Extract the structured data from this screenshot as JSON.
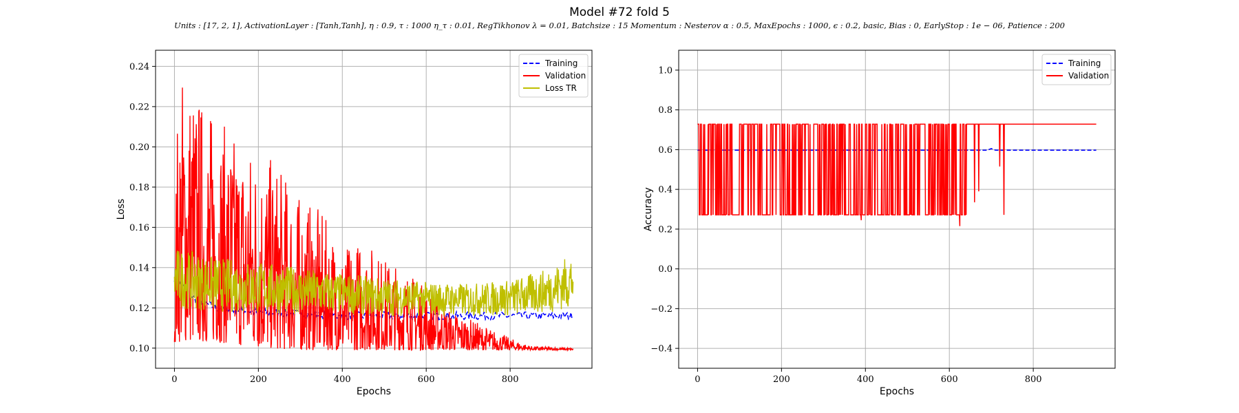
{
  "figure": {
    "title": "Model #72 fold 5",
    "subtitle": "Units : [17, 2, 1], ActivationLayer : [Tanh,Tanh], η : 0.9, τ : 1000 η_τ : 0.01, RegTikhonov λ = 0.01, Batchsize : 15 Momentum : Nesterov α : 0.5, MaxEpochs : 1000, ϵ : 0.2, basic, Bias : 0, EarlyStop : 1e − 06, Patience : 200"
  },
  "chart_data": [
    {
      "type": "line",
      "xlabel": "Epochs",
      "ylabel": "Loss",
      "xlim": [
        -45,
        995
      ],
      "ylim": [
        0.09,
        0.248
      ],
      "xticks": [
        0,
        200,
        400,
        600,
        800
      ],
      "yticks": [
        0.1,
        0.12,
        0.14,
        0.16,
        0.18,
        0.2,
        0.22,
        0.24
      ],
      "grid": true,
      "legend_position": "top-right",
      "epochs": 950,
      "series": [
        {
          "name": "Training",
          "color": "#0000ff",
          "style": "dashed",
          "values": [
            [
              0,
              0.135
            ],
            [
              50,
              0.124
            ],
            [
              100,
              0.12
            ],
            [
              200,
              0.118
            ],
            [
              300,
              0.117
            ],
            [
              400,
              0.116
            ],
            [
              500,
              0.116
            ],
            [
              600,
              0.116
            ],
            [
              700,
              0.116
            ],
            [
              800,
              0.116
            ],
            [
              950,
              0.116
            ]
          ]
        },
        {
          "name": "Validation",
          "color": "#ff0000",
          "style": "solid",
          "values": [
            [
              0,
              0.105
            ],
            [
              5,
              0.212
            ],
            [
              20,
              0.241
            ],
            [
              50,
              0.23
            ],
            [
              100,
              0.215
            ],
            [
              150,
              0.205
            ],
            [
              200,
              0.2
            ],
            [
              250,
              0.19
            ],
            [
              300,
              0.175
            ],
            [
              350,
              0.168
            ],
            [
              400,
              0.15
            ],
            [
              450,
              0.155
            ],
            [
              500,
              0.145
            ],
            [
              550,
              0.14
            ],
            [
              600,
              0.13
            ],
            [
              650,
              0.12
            ],
            [
              700,
              0.115
            ],
            [
              750,
              0.11
            ],
            [
              800,
              0.105
            ],
            [
              850,
              0.101
            ],
            [
              950,
              0.1
            ]
          ],
          "lower_envelope": [
            [
              0,
              0.103
            ],
            [
              100,
              0.103
            ],
            [
              200,
              0.1
            ],
            [
              300,
              0.099
            ],
            [
              400,
              0.099
            ],
            [
              500,
              0.099
            ],
            [
              600,
              0.099
            ],
            [
              700,
              0.099
            ],
            [
              800,
              0.099
            ],
            [
              950,
              0.099
            ]
          ]
        },
        {
          "name": "Loss TR",
          "color": "#bfbf00",
          "style": "solid",
          "values": [
            [
              0,
              0.128
            ],
            [
              50,
              0.13
            ],
            [
              100,
              0.128
            ],
            [
              200,
              0.127
            ],
            [
              300,
              0.126
            ],
            [
              400,
              0.125
            ],
            [
              500,
              0.124
            ],
            [
              600,
              0.123
            ],
            [
              700,
              0.123
            ],
            [
              800,
              0.124
            ],
            [
              900,
              0.128
            ],
            [
              950,
              0.13
            ]
          ],
          "upper_envelope": [
            [
              0,
              0.15
            ],
            [
              100,
              0.145
            ],
            [
              200,
              0.143
            ],
            [
              300,
              0.14
            ],
            [
              400,
              0.137
            ],
            [
              500,
              0.135
            ],
            [
              600,
              0.133
            ],
            [
              700,
              0.132
            ],
            [
              800,
              0.134
            ],
            [
              900,
              0.14
            ],
            [
              950,
              0.148
            ]
          ],
          "lower_envelope": [
            [
              0,
              0.12
            ],
            [
              100,
              0.118
            ],
            [
              200,
              0.117
            ],
            [
              300,
              0.117
            ],
            [
              400,
              0.117
            ],
            [
              500,
              0.116
            ],
            [
              600,
              0.116
            ],
            [
              700,
              0.116
            ],
            [
              800,
              0.116
            ],
            [
              900,
              0.118
            ],
            [
              950,
              0.12
            ]
          ]
        }
      ]
    },
    {
      "type": "line",
      "xlabel": "Epochs",
      "ylabel": "Accuracy",
      "xlim": [
        -45,
        995
      ],
      "ylim": [
        -0.5,
        1.1
      ],
      "xticks": [
        0,
        200,
        400,
        600,
        800
      ],
      "yticks": [
        -0.4,
        -0.2,
        0.0,
        0.2,
        0.4,
        0.6,
        0.8,
        1.0
      ],
      "grid": true,
      "legend_position": "top-right",
      "epochs": 950,
      "series": [
        {
          "name": "Training",
          "color": "#0000ff",
          "style": "dashed",
          "values": [
            [
              0,
              0.597
            ],
            [
              690,
              0.597
            ],
            [
              700,
              0.605
            ],
            [
              710,
              0.597
            ],
            [
              950,
              0.597
            ]
          ]
        },
        {
          "name": "Validation",
          "color": "#ff0000",
          "style": "solid",
          "high": 0.728,
          "low": 0.272,
          "oscillation_end_epoch": 640,
          "dips": [
            [
              390,
              0.245
            ],
            [
              625,
              0.215
            ],
            [
              660,
              0.335
            ],
            [
              670,
              0.39
            ],
            [
              720,
              0.515
            ],
            [
              730,
              0.272
            ]
          ],
          "values": [
            [
              0,
              0.728
            ],
            [
              950,
              0.728
            ]
          ]
        }
      ]
    }
  ]
}
